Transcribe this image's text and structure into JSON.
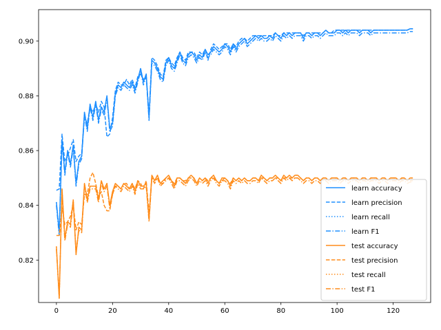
{
  "chart_data": {
    "type": "line",
    "title": "",
    "xlabel": "",
    "ylabel": "",
    "xlim": [
      -6.35,
      133.35
    ],
    "ylim": [
      0.8045,
      0.9115
    ],
    "xticks": [
      0,
      20,
      40,
      60,
      80,
      100,
      120
    ],
    "yticks": [
      0.82,
      0.84,
      0.86,
      0.88,
      0.9
    ],
    "ytick_labels": [
      "0.82",
      "0.84",
      "0.86",
      "0.88",
      "0.90"
    ],
    "grid": false,
    "legend_position": "lower-right",
    "colors": {
      "learn": "#1f8fff",
      "test": "#ff8c1a"
    },
    "series": [
      {
        "name": "learn accuracy",
        "style": "solid",
        "color": "#1f8fff",
        "values": [
          0.8412,
          0.83,
          0.864,
          0.852,
          0.86,
          0.855,
          0.862,
          0.848,
          0.856,
          0.858,
          0.874,
          0.868,
          0.877,
          0.872,
          0.878,
          0.871,
          0.876,
          0.874,
          0.88,
          0.868,
          0.87,
          0.881,
          0.884,
          0.883,
          0.885,
          0.884,
          0.883,
          0.885,
          0.882,
          0.886,
          0.89,
          0.885,
          0.888,
          0.872,
          0.893,
          0.892,
          0.89,
          0.887,
          0.886,
          0.892,
          0.894,
          0.891,
          0.89,
          0.893,
          0.896,
          0.893,
          0.892,
          0.895,
          0.896,
          0.895,
          0.893,
          0.895,
          0.894,
          0.897,
          0.895,
          0.896,
          0.898,
          0.897,
          0.896,
          0.897,
          0.899,
          0.898,
          0.896,
          0.899,
          0.897,
          0.899,
          0.9,
          0.901,
          0.899,
          0.9,
          0.901,
          0.902,
          0.901,
          0.902,
          0.901,
          0.901,
          0.902,
          0.901,
          0.903,
          0.902,
          0.901,
          0.903,
          0.902,
          0.903,
          0.902,
          0.903,
          0.903,
          0.903,
          0.901,
          0.903,
          0.903,
          0.902,
          0.903,
          0.903,
          0.902,
          0.903,
          0.904,
          0.903,
          0.903,
          0.903,
          0.904,
          0.904,
          0.903,
          0.904,
          0.903,
          0.904,
          0.904,
          0.904,
          0.903,
          0.904,
          0.904,
          0.904,
          0.903,
          0.904,
          0.904,
          0.904,
          0.904,
          0.904,
          0.904,
          0.904,
          0.904,
          0.904,
          0.904,
          0.904,
          0.904,
          0.904,
          0.9045,
          0.9045
        ]
      },
      {
        "name": "learn precision",
        "style": "dashed",
        "color": "#1f8fff",
        "values": [
          0.8455,
          0.846,
          0.866,
          0.856,
          0.858,
          0.861,
          0.864,
          0.856,
          0.858,
          0.859,
          0.872,
          0.87,
          0.876,
          0.874,
          0.877,
          0.874,
          0.878,
          0.876,
          0.865,
          0.866,
          0.872,
          0.882,
          0.885,
          0.884,
          0.884,
          0.886,
          0.884,
          0.886,
          0.883,
          0.887,
          0.888,
          0.886,
          0.887,
          0.873,
          0.894,
          0.893,
          0.891,
          0.888,
          0.887,
          0.893,
          0.894,
          0.892,
          0.891,
          0.894,
          0.896,
          0.894,
          0.893,
          0.896,
          0.896,
          0.896,
          0.894,
          0.896,
          0.895,
          0.897,
          0.893,
          0.897,
          0.899,
          0.898,
          0.897,
          0.898,
          0.899,
          0.899,
          0.897,
          0.899,
          0.898,
          0.9,
          0.901,
          0.901,
          0.9,
          0.901,
          0.902,
          0.902,
          0.902,
          0.902,
          0.902,
          0.902,
          0.902,
          0.902,
          0.903,
          0.902,
          0.902,
          0.903,
          0.903,
          0.903,
          0.903,
          0.903,
          0.903,
          0.903,
          0.902,
          0.903,
          0.903,
          0.903,
          0.903,
          0.903,
          0.903,
          0.903,
          0.904,
          0.903,
          0.903,
          0.904,
          0.904,
          0.904,
          0.904,
          0.904,
          0.904,
          0.904,
          0.904,
          0.904,
          0.904,
          0.904,
          0.904,
          0.904,
          0.904,
          0.904,
          0.904,
          0.904,
          0.904,
          0.904,
          0.904,
          0.904,
          0.904,
          0.904,
          0.904,
          0.904,
          0.904,
          0.904,
          0.9045,
          0.9045
        ]
      },
      {
        "name": "learn recall",
        "style": "dotted",
        "color": "#1f8fff",
        "values": [
          0.8412,
          0.83,
          0.864,
          0.852,
          0.86,
          0.855,
          0.862,
          0.848,
          0.856,
          0.858,
          0.874,
          0.868,
          0.877,
          0.872,
          0.878,
          0.871,
          0.876,
          0.874,
          0.88,
          0.868,
          0.87,
          0.881,
          0.884,
          0.883,
          0.885,
          0.884,
          0.883,
          0.885,
          0.882,
          0.886,
          0.89,
          0.885,
          0.888,
          0.872,
          0.893,
          0.892,
          0.89,
          0.887,
          0.886,
          0.892,
          0.894,
          0.891,
          0.89,
          0.893,
          0.896,
          0.893,
          0.892,
          0.895,
          0.896,
          0.895,
          0.893,
          0.895,
          0.894,
          0.897,
          0.895,
          0.896,
          0.898,
          0.897,
          0.896,
          0.897,
          0.899,
          0.898,
          0.896,
          0.899,
          0.897,
          0.899,
          0.9,
          0.901,
          0.899,
          0.9,
          0.901,
          0.902,
          0.901,
          0.902,
          0.901,
          0.901,
          0.902,
          0.901,
          0.903,
          0.902,
          0.901,
          0.903,
          0.902,
          0.903,
          0.902,
          0.903,
          0.903,
          0.903,
          0.901,
          0.903,
          0.903,
          0.902,
          0.903,
          0.903,
          0.902,
          0.903,
          0.904,
          0.903,
          0.903,
          0.903,
          0.904,
          0.904,
          0.903,
          0.904,
          0.903,
          0.904,
          0.904,
          0.904,
          0.903,
          0.904,
          0.904,
          0.904,
          0.903,
          0.904,
          0.904,
          0.904,
          0.904,
          0.904,
          0.904,
          0.904,
          0.904,
          0.904,
          0.904,
          0.904,
          0.904,
          0.904,
          0.9045,
          0.9045
        ]
      },
      {
        "name": "learn F1",
        "style": "dashdot",
        "color": "#1f8fff",
        "values": [
          0.84,
          0.829,
          0.863,
          0.851,
          0.859,
          0.854,
          0.861,
          0.847,
          0.855,
          0.857,
          0.873,
          0.867,
          0.876,
          0.871,
          0.877,
          0.87,
          0.875,
          0.873,
          0.879,
          0.867,
          0.869,
          0.88,
          0.883,
          0.882,
          0.884,
          0.883,
          0.882,
          0.884,
          0.881,
          0.885,
          0.889,
          0.884,
          0.887,
          0.871,
          0.892,
          0.891,
          0.889,
          0.886,
          0.885,
          0.891,
          0.893,
          0.89,
          0.889,
          0.892,
          0.895,
          0.892,
          0.891,
          0.894,
          0.895,
          0.894,
          0.892,
          0.894,
          0.893,
          0.896,
          0.894,
          0.895,
          0.897,
          0.896,
          0.895,
          0.896,
          0.898,
          0.897,
          0.895,
          0.898,
          0.896,
          0.898,
          0.899,
          0.9,
          0.898,
          0.899,
          0.9,
          0.901,
          0.9,
          0.901,
          0.9,
          0.9,
          0.901,
          0.9,
          0.902,
          0.901,
          0.9,
          0.902,
          0.901,
          0.902,
          0.901,
          0.902,
          0.902,
          0.902,
          0.9,
          0.902,
          0.902,
          0.901,
          0.902,
          0.902,
          0.901,
          0.902,
          0.903,
          0.902,
          0.902,
          0.902,
          0.903,
          0.903,
          0.902,
          0.903,
          0.902,
          0.903,
          0.903,
          0.903,
          0.902,
          0.903,
          0.903,
          0.903,
          0.902,
          0.903,
          0.903,
          0.903,
          0.903,
          0.903,
          0.903,
          0.903,
          0.903,
          0.903,
          0.903,
          0.903,
          0.903,
          0.903,
          0.9035,
          0.9035
        ]
      },
      {
        "name": "test accuracy",
        "style": "solid",
        "color": "#ff8c1a",
        "values": [
          0.825,
          0.806,
          0.846,
          0.828,
          0.834,
          0.833,
          0.842,
          0.822,
          0.832,
          0.831,
          0.848,
          0.842,
          0.847,
          0.847,
          0.847,
          0.842,
          0.849,
          0.846,
          0.848,
          0.84,
          0.845,
          0.848,
          0.847,
          0.846,
          0.848,
          0.847,
          0.846,
          0.848,
          0.845,
          0.849,
          0.847,
          0.847,
          0.848,
          0.835,
          0.851,
          0.849,
          0.851,
          0.848,
          0.849,
          0.85,
          0.851,
          0.849,
          0.847,
          0.85,
          0.85,
          0.849,
          0.848,
          0.85,
          0.851,
          0.85,
          0.848,
          0.85,
          0.849,
          0.85,
          0.848,
          0.85,
          0.851,
          0.849,
          0.848,
          0.85,
          0.85,
          0.849,
          0.847,
          0.85,
          0.849,
          0.85,
          0.849,
          0.85,
          0.849,
          0.849,
          0.85,
          0.85,
          0.849,
          0.851,
          0.85,
          0.849,
          0.85,
          0.85,
          0.851,
          0.85,
          0.849,
          0.851,
          0.85,
          0.851,
          0.85,
          0.851,
          0.851,
          0.85,
          0.849,
          0.85,
          0.85,
          0.849,
          0.85,
          0.85,
          0.849,
          0.85,
          0.85,
          0.849,
          0.85,
          0.85,
          0.85,
          0.849,
          0.85,
          0.85,
          0.849,
          0.85,
          0.85,
          0.85,
          0.849,
          0.85,
          0.85,
          0.849,
          0.85,
          0.85,
          0.85,
          0.849,
          0.85,
          0.85,
          0.849,
          0.85,
          0.85,
          0.85,
          0.849,
          0.85,
          0.85,
          0.849,
          0.85,
          0.85
        ]
      },
      {
        "name": "test precision",
        "style": "dashed",
        "color": "#ff8c1a",
        "values": [
          0.829,
          0.829,
          0.839,
          0.833,
          0.834,
          0.836,
          0.84,
          0.831,
          0.834,
          0.833,
          0.844,
          0.844,
          0.85,
          0.852,
          0.848,
          0.843,
          0.845,
          0.84,
          0.838,
          0.838,
          0.844,
          0.847,
          0.847,
          0.846,
          0.848,
          0.848,
          0.846,
          0.848,
          0.846,
          0.849,
          0.848,
          0.846,
          0.849,
          0.837,
          0.85,
          0.849,
          0.85,
          0.848,
          0.848,
          0.85,
          0.85,
          0.849,
          0.848,
          0.85,
          0.85,
          0.849,
          0.849,
          0.85,
          0.85,
          0.85,
          0.848,
          0.85,
          0.849,
          0.85,
          0.849,
          0.85,
          0.85,
          0.849,
          0.848,
          0.849,
          0.85,
          0.849,
          0.848,
          0.85,
          0.849,
          0.85,
          0.849,
          0.85,
          0.849,
          0.849,
          0.85,
          0.85,
          0.849,
          0.85,
          0.85,
          0.849,
          0.85,
          0.85,
          0.85,
          0.85,
          0.849,
          0.85,
          0.85,
          0.85,
          0.85,
          0.85,
          0.85,
          0.85,
          0.849,
          0.85,
          0.85,
          0.849,
          0.85,
          0.85,
          0.849,
          0.85,
          0.85,
          0.849,
          0.85,
          0.85,
          0.85,
          0.849,
          0.85,
          0.85,
          0.849,
          0.85,
          0.85,
          0.85,
          0.849,
          0.85,
          0.85,
          0.849,
          0.85,
          0.85,
          0.85,
          0.849,
          0.85,
          0.85,
          0.849,
          0.85,
          0.85,
          0.85,
          0.849,
          0.85,
          0.85,
          0.849,
          0.849,
          0.849
        ]
      },
      {
        "name": "test recall",
        "style": "dotted",
        "color": "#ff8c1a",
        "values": [
          0.825,
          0.806,
          0.846,
          0.828,
          0.834,
          0.833,
          0.842,
          0.822,
          0.832,
          0.831,
          0.848,
          0.842,
          0.847,
          0.847,
          0.847,
          0.842,
          0.849,
          0.846,
          0.848,
          0.84,
          0.845,
          0.848,
          0.847,
          0.846,
          0.848,
          0.847,
          0.846,
          0.848,
          0.845,
          0.849,
          0.847,
          0.847,
          0.848,
          0.835,
          0.851,
          0.849,
          0.851,
          0.848,
          0.849,
          0.85,
          0.851,
          0.849,
          0.847,
          0.85,
          0.85,
          0.849,
          0.848,
          0.85,
          0.851,
          0.85,
          0.848,
          0.85,
          0.849,
          0.85,
          0.848,
          0.85,
          0.851,
          0.849,
          0.848,
          0.85,
          0.85,
          0.849,
          0.847,
          0.85,
          0.849,
          0.85,
          0.849,
          0.85,
          0.849,
          0.849,
          0.85,
          0.85,
          0.849,
          0.851,
          0.85,
          0.849,
          0.85,
          0.85,
          0.851,
          0.85,
          0.849,
          0.851,
          0.85,
          0.851,
          0.85,
          0.851,
          0.851,
          0.85,
          0.849,
          0.85,
          0.85,
          0.849,
          0.85,
          0.85,
          0.849,
          0.85,
          0.85,
          0.849,
          0.85,
          0.85,
          0.85,
          0.849,
          0.85,
          0.85,
          0.849,
          0.85,
          0.85,
          0.85,
          0.849,
          0.85,
          0.85,
          0.849,
          0.85,
          0.85,
          0.85,
          0.849,
          0.85,
          0.85,
          0.849,
          0.85,
          0.85,
          0.85,
          0.849,
          0.85,
          0.85,
          0.849,
          0.85,
          0.85
        ]
      },
      {
        "name": "test F1",
        "style": "dashdot",
        "color": "#ff8c1a",
        "values": [
          0.824,
          0.807,
          0.845,
          0.827,
          0.833,
          0.832,
          0.841,
          0.823,
          0.831,
          0.83,
          0.847,
          0.841,
          0.846,
          0.846,
          0.846,
          0.841,
          0.848,
          0.845,
          0.847,
          0.839,
          0.844,
          0.847,
          0.846,
          0.845,
          0.847,
          0.846,
          0.845,
          0.847,
          0.844,
          0.848,
          0.846,
          0.846,
          0.847,
          0.834,
          0.85,
          0.848,
          0.85,
          0.847,
          0.848,
          0.849,
          0.85,
          0.848,
          0.846,
          0.849,
          0.849,
          0.848,
          0.847,
          0.849,
          0.85,
          0.849,
          0.847,
          0.849,
          0.848,
          0.849,
          0.847,
          0.849,
          0.85,
          0.848,
          0.847,
          0.849,
          0.849,
          0.848,
          0.846,
          0.849,
          0.848,
          0.849,
          0.848,
          0.849,
          0.848,
          0.848,
          0.849,
          0.849,
          0.848,
          0.85,
          0.849,
          0.848,
          0.849,
          0.849,
          0.85,
          0.849,
          0.848,
          0.85,
          0.849,
          0.85,
          0.849,
          0.85,
          0.85,
          0.849,
          0.848,
          0.849,
          0.849,
          0.848,
          0.849,
          0.849,
          0.848,
          0.849,
          0.849,
          0.848,
          0.849,
          0.849,
          0.849,
          0.848,
          0.849,
          0.849,
          0.848,
          0.849,
          0.849,
          0.849,
          0.848,
          0.849,
          0.849,
          0.848,
          0.849,
          0.849,
          0.849,
          0.848,
          0.849,
          0.849,
          0.848,
          0.849,
          0.849,
          0.849,
          0.848,
          0.849,
          0.849,
          0.848,
          0.8485,
          0.8485
        ]
      }
    ]
  }
}
